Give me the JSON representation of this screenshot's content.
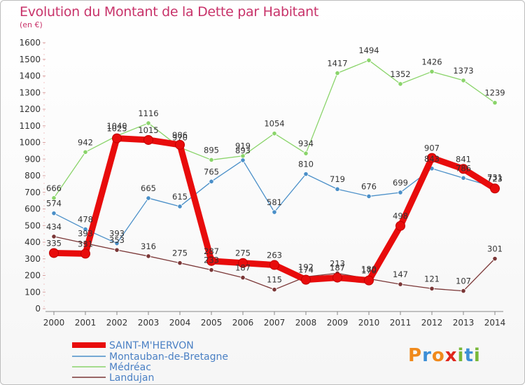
{
  "chart_data": {
    "type": "line",
    "title": "Evolution du Montant de la Dette par Habitant",
    "subtitle": "(en €)",
    "x": [
      "2000",
      "2001",
      "2002",
      "2003",
      "2004",
      "2005",
      "2006",
      "2007",
      "2008",
      "2009",
      "2010",
      "2011",
      "2012",
      "2013",
      "2014"
    ],
    "ylim": [
      0,
      1600
    ],
    "yticks": [
      0,
      100,
      200,
      300,
      400,
      500,
      600,
      700,
      800,
      900,
      1000,
      1100,
      1200,
      1300,
      1400,
      1500,
      1600
    ],
    "grid": false,
    "legend_position": "bottom-left",
    "series": [
      {
        "name": "SAINT-M'HERVON",
        "color": "#e80c0c",
        "values": [
          335,
          331,
          1025,
          1015,
          986,
          287,
          275,
          263,
          174,
          187,
          170,
          498,
          907,
          841,
          723
        ]
      },
      {
        "name": "Montauban-de-Bretagne",
        "color": "#4a8fc8",
        "values": [
          574,
          478,
          393,
          665,
          615,
          765,
          893,
          581,
          810,
          719,
          676,
          699,
          843,
          786,
          731
        ]
      },
      {
        "name": "Médréac",
        "color": "#8ad46a",
        "values": [
          666,
          942,
          1040,
          1116,
          970,
          895,
          919,
          1054,
          934,
          1417,
          1494,
          1352,
          1426,
          1373,
          1239
        ]
      },
      {
        "name": "Landujan",
        "color": "#7a3636",
        "values": [
          434,
          393,
          353,
          316,
          275,
          233,
          187,
          115,
          192,
          213,
          180,
          147,
          121,
          107,
          301
        ]
      }
    ]
  },
  "logo": {
    "text": "Proxiti"
  }
}
